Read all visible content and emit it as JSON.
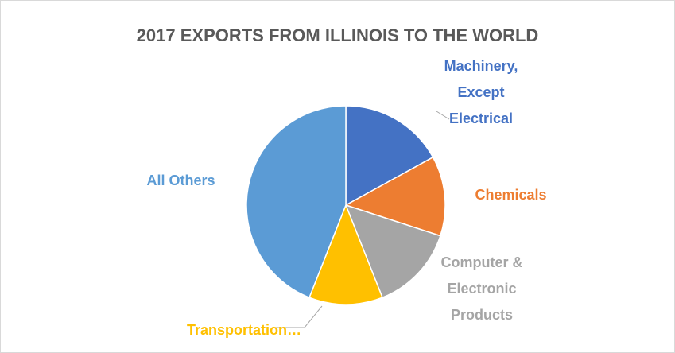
{
  "chart_data": {
    "type": "pie",
    "title": "2017 EXPORTS FROM ILLINOIS TO THE WORLD",
    "categories": [
      "Machinery, Except Electrical",
      "Chemicals",
      "Computer & Electronic Products",
      "Transportation…",
      "All Others"
    ],
    "values": [
      17,
      13,
      14,
      12,
      44
    ],
    "colors": [
      "#4472c4",
      "#ed7d31",
      "#a5a5a5",
      "#ffc000",
      "#5b9bd5"
    ]
  }
}
